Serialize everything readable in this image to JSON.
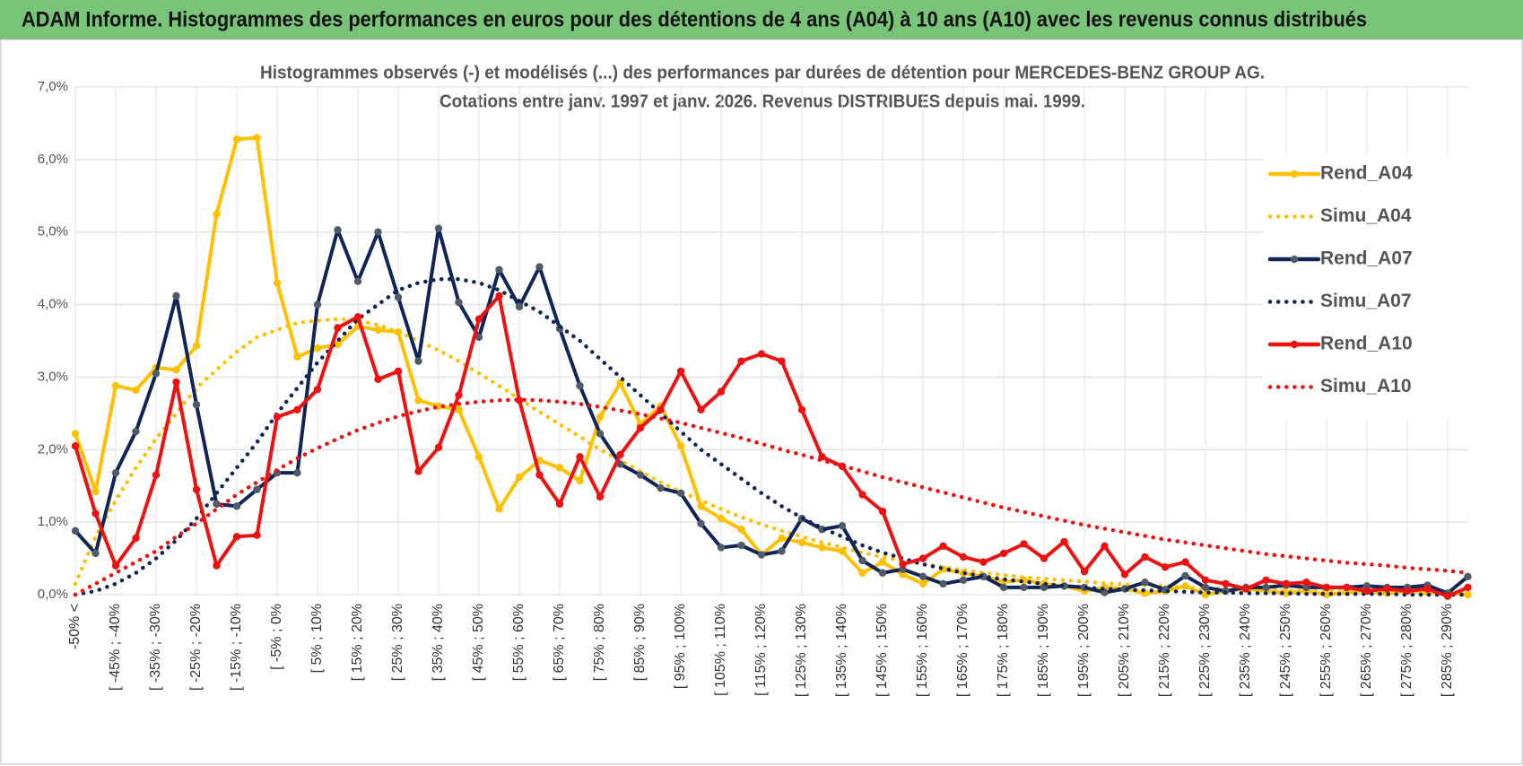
{
  "chart_data": {
    "type": "line",
    "title": "ADAM Informe. Histogrammes des performances en euros pour des détentions de 4 ans (A04) à 10 ans (A10) avec les revenus connus distribués",
    "subtitle": [
      "Histogrammes observés (-) et modélisés (...) des performances par durées de détention pour MERCEDES-BENZ GROUP AG.",
      "Cotations entre janv. 1997 et janv. 2026. Revenus DISTRIBUES depuis mai. 1999."
    ],
    "categories": [
      "-50% <",
      null,
      "[ -45% ; -40%",
      null,
      "[ -35% ; -30%",
      null,
      "[ -25% ; -20%",
      null,
      "[ -15% ; -10%",
      null,
      "[ -5% ; 0%",
      null,
      "[ 5% ; 10%",
      null,
      "[ 15% ; 20%",
      null,
      "[ 25% ; 30%",
      null,
      "[ 35% ; 40%",
      null,
      "[ 45% ; 50%",
      null,
      "[ 55% ; 60%",
      null,
      "[ 65% ; 70%",
      null,
      "[ 75% ; 80%",
      null,
      "[ 85% ; 90%",
      null,
      "[ 95% ; 100%",
      null,
      "[ 105% ; 110%",
      null,
      "[ 115% ; 120%",
      null,
      "[ 125% ; 130%",
      null,
      "[ 135% ; 140%",
      null,
      "[ 145% ; 150%",
      null,
      "[ 155% ; 160%",
      null,
      "[ 165% ; 170%",
      null,
      "[ 175% ; 180%",
      null,
      "[ 185% ; 190%",
      null,
      "[ 195% ; 200%",
      null,
      "[ 205% ; 210%",
      null,
      "[ 215% ; 220%",
      null,
      "[ 225% ; 230%",
      null,
      "[ 235% ; 240%",
      null,
      "[ 245% ; 250%",
      null,
      "[ 255% ; 260%",
      null,
      "[ 265% ; 270%",
      null,
      "[ 275% ; 280%",
      null,
      "[ 285% ; 290%",
      null
    ],
    "series": [
      {
        "name": "Rend_A04",
        "color": "#ffc000",
        "dash": "solid",
        "markers": true,
        "marker_color": "#ffc000",
        "values": [
          2.22,
          1.42,
          2.88,
          2.82,
          3.13,
          3.1,
          3.43,
          5.25,
          6.28,
          6.3,
          4.3,
          3.28,
          3.4,
          3.45,
          3.7,
          3.65,
          3.62,
          2.68,
          2.6,
          2.55,
          1.9,
          1.18,
          1.62,
          1.85,
          1.75,
          1.57,
          2.45,
          2.92,
          2.35,
          2.6,
          2.05,
          1.22,
          1.05,
          0.9,
          0.55,
          0.78,
          0.72,
          0.65,
          0.6,
          0.3,
          0.45,
          0.28,
          0.15,
          0.35,
          0.3,
          0.25,
          0.18,
          0.2,
          0.15,
          0.12,
          0.05,
          0.1,
          0.08,
          0.02,
          0.05,
          0.12,
          0.0,
          0.05,
          0.08,
          0.05,
          0.02,
          0.05,
          0.0,
          0.03,
          0.05,
          0.02,
          0.05,
          0.03,
          0.02,
          0.0
        ]
      },
      {
        "name": "Simu_A04",
        "color": "#ffc000",
        "dash": "dotted",
        "markers": false,
        "values": [
          0.15,
          0.8,
          1.3,
          1.75,
          2.15,
          2.5,
          2.85,
          3.1,
          3.35,
          3.55,
          3.65,
          3.75,
          3.78,
          3.8,
          3.78,
          3.72,
          3.62,
          3.5,
          3.37,
          3.22,
          3.05,
          2.88,
          2.7,
          2.52,
          2.35,
          2.18,
          2.0,
          1.85,
          1.7,
          1.55,
          1.42,
          1.3,
          1.18,
          1.07,
          0.97,
          0.88,
          0.8,
          0.72,
          0.65,
          0.58,
          0.52,
          0.47,
          0.42,
          0.38,
          0.34,
          0.3,
          0.27,
          0.24,
          0.22,
          0.2,
          0.18,
          0.16,
          0.14,
          0.13,
          0.12,
          0.1,
          0.09,
          0.08,
          0.07,
          0.07,
          0.06,
          0.05,
          0.05,
          0.04,
          0.04,
          0.03,
          0.03,
          0.03,
          0.02,
          0.02
        ]
      },
      {
        "name": "Rend_A07",
        "color": "#0f2557",
        "dash": "solid",
        "markers": true,
        "marker_color": "#4f5b69",
        "values": [
          0.88,
          0.57,
          1.68,
          2.25,
          3.05,
          4.12,
          2.62,
          1.25,
          1.22,
          1.45,
          1.68,
          1.68,
          4.0,
          5.03,
          4.32,
          5.0,
          4.1,
          3.22,
          5.05,
          4.03,
          3.55,
          4.48,
          3.97,
          4.52,
          3.67,
          2.88,
          2.22,
          1.8,
          1.65,
          1.47,
          1.4,
          0.98,
          0.65,
          0.68,
          0.55,
          0.6,
          1.05,
          0.9,
          0.95,
          0.47,
          0.3,
          0.35,
          0.25,
          0.15,
          0.2,
          0.25,
          0.1,
          0.1,
          0.1,
          0.12,
          0.1,
          0.03,
          0.08,
          0.17,
          0.07,
          0.26,
          0.1,
          0.05,
          0.1,
          0.1,
          0.13,
          0.1,
          0.1,
          0.1,
          0.12,
          0.1,
          0.1,
          0.13,
          0.02,
          0.25
        ]
      },
      {
        "name": "Simu_A07",
        "color": "#0f2557",
        "dash": "dotted",
        "markers": false,
        "values": [
          0,
          0.05,
          0.15,
          0.3,
          0.5,
          0.75,
          1.05,
          1.4,
          1.75,
          2.1,
          2.5,
          2.85,
          3.2,
          3.5,
          3.8,
          4.0,
          4.2,
          4.3,
          4.35,
          4.35,
          4.3,
          4.2,
          4.05,
          3.9,
          3.7,
          3.5,
          3.25,
          3.0,
          2.75,
          2.5,
          2.25,
          2.0,
          1.8,
          1.6,
          1.4,
          1.22,
          1.06,
          0.92,
          0.8,
          0.68,
          0.58,
          0.5,
          0.42,
          0.36,
          0.3,
          0.25,
          0.21,
          0.18,
          0.15,
          0.12,
          0.1,
          0.08,
          0.07,
          0.06,
          0.05,
          0.04,
          0.03,
          0.03,
          0.02,
          0.02,
          0.02,
          0.01,
          0.01,
          0.01,
          0.01,
          0.01,
          0,
          0,
          0,
          0
        ]
      },
      {
        "name": "Rend_A10",
        "color": "#ee1111",
        "dash": "solid",
        "markers": true,
        "marker_color": "#ee1111",
        "values": [
          2.05,
          1.12,
          0.4,
          0.78,
          1.65,
          2.93,
          1.45,
          0.4,
          0.8,
          0.82,
          2.45,
          2.55,
          2.83,
          3.68,
          3.83,
          2.97,
          3.08,
          1.7,
          2.03,
          2.75,
          3.8,
          4.12,
          2.68,
          1.65,
          1.25,
          1.9,
          1.35,
          1.93,
          2.3,
          2.55,
          3.08,
          2.55,
          2.8,
          3.22,
          3.32,
          3.22,
          2.55,
          1.9,
          1.77,
          1.38,
          1.15,
          0.42,
          0.5,
          0.67,
          0.52,
          0.45,
          0.57,
          0.7,
          0.5,
          0.73,
          0.32,
          0.67,
          0.28,
          0.52,
          0.38,
          0.45,
          0.2,
          0.15,
          0.08,
          0.2,
          0.15,
          0.17,
          0.1,
          0.1,
          0.05,
          0.08,
          0.05,
          0.08,
          -0.02,
          0.1
        ]
      },
      {
        "name": "Simu_A10",
        "color": "#ee1111",
        "dash": "dotted",
        "markers": false,
        "values": [
          0,
          0.15,
          0.3,
          0.45,
          0.6,
          0.8,
          0.98,
          1.18,
          1.38,
          1.55,
          1.72,
          1.88,
          2.02,
          2.15,
          2.27,
          2.37,
          2.46,
          2.53,
          2.59,
          2.63,
          2.66,
          2.68,
          2.69,
          2.68,
          2.66,
          2.63,
          2.59,
          2.54,
          2.49,
          2.43,
          2.37,
          2.3,
          2.23,
          2.16,
          2.08,
          2.0,
          1.93,
          1.85,
          1.78,
          1.7,
          1.62,
          1.55,
          1.48,
          1.41,
          1.34,
          1.27,
          1.2,
          1.14,
          1.08,
          1.02,
          0.96,
          0.91,
          0.86,
          0.81,
          0.76,
          0.72,
          0.68,
          0.64,
          0.6,
          0.56,
          0.53,
          0.5,
          0.47,
          0.44,
          0.42,
          0.4,
          0.37,
          0.35,
          0.33,
          0.3
        ]
      }
    ],
    "ylim": [
      0,
      7
    ],
    "yticks": [
      {
        "value": 0,
        "label": "0,0%"
      },
      {
        "value": 1,
        "label": "1,0%"
      },
      {
        "value": 2,
        "label": "2,0%"
      },
      {
        "value": 3,
        "label": "3,0%"
      },
      {
        "value": 4,
        "label": "4,0%"
      },
      {
        "value": 5,
        "label": "5,0%"
      },
      {
        "value": 6,
        "label": "6,0%"
      },
      {
        "value": 7,
        "label": "7,0%"
      }
    ],
    "grid": true,
    "legend": "right"
  }
}
